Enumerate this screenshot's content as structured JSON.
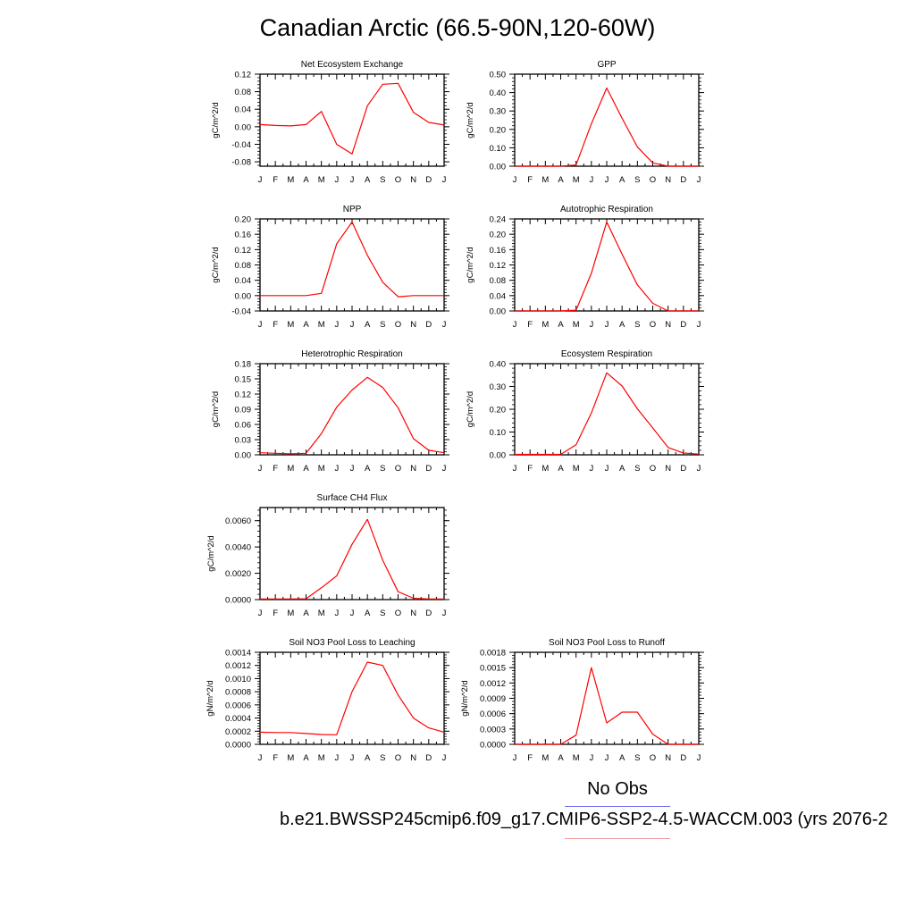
{
  "page_title": "Canadian Arctic (66.5-90N,120-60W)",
  "colors": {
    "model_line": "#ff0000",
    "obs_line": "#6a6af2",
    "axis": "#000000"
  },
  "legend": {
    "entries": [
      {
        "label": "No Obs",
        "color": "#6a6af2"
      },
      {
        "label": "b.e21.BWSSP245cmip6.f09_g17.CMIP6-SSP2-4.5-WACCM.003 (yrs 2076-2",
        "color": "#ff0000"
      }
    ]
  },
  "chart_data": [
    {
      "type": "line",
      "title": "Net Ecosystem Exchange",
      "ylabel": "gC/m^2/d",
      "x": [
        "J",
        "F",
        "M",
        "A",
        "M",
        "J",
        "J",
        "A",
        "S",
        "O",
        "N",
        "D",
        "J"
      ],
      "ylim": [
        -0.09,
        0.12
      ],
      "yticks": [
        "-0.08",
        "-0.04",
        "0.00",
        "0.04",
        "0.08",
        "0.12"
      ],
      "series": [
        {
          "values": [
            0.005,
            0.003,
            0.002,
            0.005,
            0.035,
            -0.04,
            -0.062,
            0.048,
            0.097,
            0.099,
            0.033,
            0.01,
            0.004
          ]
        }
      ]
    },
    {
      "type": "line",
      "title": "GPP",
      "ylabel": "gC/m^2/d",
      "x": [
        "J",
        "F",
        "M",
        "A",
        "M",
        "J",
        "J",
        "A",
        "S",
        "O",
        "N",
        "D",
        "J"
      ],
      "ylim": [
        0,
        0.5
      ],
      "yticks": [
        "0.00",
        "0.10",
        "0.20",
        "0.30",
        "0.40",
        "0.50"
      ],
      "series": [
        {
          "values": [
            0,
            0,
            0,
            0,
            0.007,
            0.23,
            0.425,
            0.26,
            0.105,
            0.018,
            0,
            0,
            0
          ]
        }
      ]
    },
    {
      "type": "line",
      "title": "NPP",
      "ylabel": "gC/m^2/d",
      "x": [
        "J",
        "F",
        "M",
        "A",
        "M",
        "J",
        "J",
        "A",
        "S",
        "O",
        "N",
        "D",
        "J"
      ],
      "ylim": [
        -0.04,
        0.2
      ],
      "yticks": [
        "-0.04",
        "0.00",
        "0.04",
        "0.08",
        "0.12",
        "0.16",
        "0.20"
      ],
      "series": [
        {
          "values": [
            0,
            0,
            0,
            0,
            0.006,
            0.135,
            0.192,
            0.105,
            0.035,
            -0.003,
            0,
            0,
            0
          ]
        }
      ]
    },
    {
      "type": "line",
      "title": "Autotrophic Respiration",
      "ylabel": "gC/m^2/d",
      "x": [
        "J",
        "F",
        "M",
        "A",
        "M",
        "J",
        "J",
        "A",
        "S",
        "O",
        "N",
        "D",
        "J"
      ],
      "ylim": [
        0,
        0.24
      ],
      "yticks": [
        "0.00",
        "0.04",
        "0.08",
        "0.12",
        "0.16",
        "0.20",
        "0.24"
      ],
      "series": [
        {
          "values": [
            0,
            0,
            0,
            0,
            0.002,
            0.098,
            0.232,
            0.148,
            0.068,
            0.02,
            0,
            0,
            0
          ]
        }
      ]
    },
    {
      "type": "line",
      "title": "Heterotrophic Respiration",
      "ylabel": "gC/m^2/d",
      "x": [
        "J",
        "F",
        "M",
        "A",
        "M",
        "J",
        "J",
        "A",
        "S",
        "O",
        "N",
        "D",
        "J"
      ],
      "ylim": [
        0,
        0.18
      ],
      "yticks": [
        "0.00",
        "0.03",
        "0.06",
        "0.09",
        "0.12",
        "0.15",
        "0.18"
      ],
      "series": [
        {
          "values": [
            0.004,
            0.003,
            0.002,
            0.003,
            0.042,
            0.094,
            0.128,
            0.153,
            0.133,
            0.093,
            0.032,
            0.009,
            0.004
          ]
        }
      ]
    },
    {
      "type": "line",
      "title": "Ecosystem Respiration",
      "ylabel": "gC/m^2/d",
      "x": [
        "J",
        "F",
        "M",
        "A",
        "M",
        "J",
        "J",
        "A",
        "S",
        "O",
        "N",
        "D",
        "J"
      ],
      "ylim": [
        0,
        0.4
      ],
      "yticks": [
        "0.00",
        "0.10",
        "0.20",
        "0.30",
        "0.40"
      ],
      "series": [
        {
          "values": [
            0.002,
            0.002,
            0.002,
            0.002,
            0.044,
            0.183,
            0.36,
            0.302,
            0.202,
            0.118,
            0.032,
            0.008,
            0.003
          ]
        }
      ]
    },
    {
      "type": "line",
      "title": "Surface CH4 Flux",
      "ylabel": "gC/m^2/d",
      "x": [
        "J",
        "F",
        "M",
        "A",
        "M",
        "J",
        "J",
        "A",
        "S",
        "O",
        "N",
        "D",
        "J"
      ],
      "ylim": [
        0,
        0.007
      ],
      "yticks": [
        "0.0000",
        "0.0020",
        "0.0040",
        "0.0060"
      ],
      "series": [
        {
          "values": [
            5e-05,
            5e-05,
            5e-05,
            6e-05,
            0.0009,
            0.0018,
            0.0042,
            0.0061,
            0.003,
            0.0006,
            0.0001,
            5e-05,
            4e-05
          ]
        }
      ]
    },
    {
      "type": "line",
      "title": "Soil NO3 Pool Loss to Leaching",
      "ylabel": "gN/m^2/d",
      "x": [
        "J",
        "F",
        "M",
        "A",
        "M",
        "J",
        "J",
        "A",
        "S",
        "O",
        "N",
        "D",
        "J"
      ],
      "ylim": [
        0,
        0.0014
      ],
      "yticks": [
        "0.0000",
        "0.0002",
        "0.0004",
        "0.0006",
        "0.0008",
        "0.0010",
        "0.0012",
        "0.0014"
      ],
      "series": [
        {
          "values": [
            0.000185,
            0.00018,
            0.00018,
            0.000165,
            0.00015,
            0.000145,
            0.0008,
            0.00125,
            0.0012,
            0.00075,
            0.0004,
            0.00025,
            0.000185
          ]
        }
      ]
    },
    {
      "type": "line",
      "title": "Soil NO3 Pool Loss to Runoff",
      "ylabel": "gN/m^2/d",
      "x": [
        "J",
        "F",
        "M",
        "A",
        "M",
        "J",
        "J",
        "A",
        "S",
        "O",
        "N",
        "D",
        "J"
      ],
      "ylim": [
        0,
        0.0018
      ],
      "yticks": [
        "0.0000",
        "0.0003",
        "0.0006",
        "0.0009",
        "0.0012",
        "0.0015",
        "0.0018"
      ],
      "series": [
        {
          "values": [
            0,
            0,
            0,
            0,
            0.00018,
            0.0015,
            0.00042,
            0.00063,
            0.00063,
            0.0002,
            0,
            0,
            0
          ]
        }
      ]
    }
  ]
}
